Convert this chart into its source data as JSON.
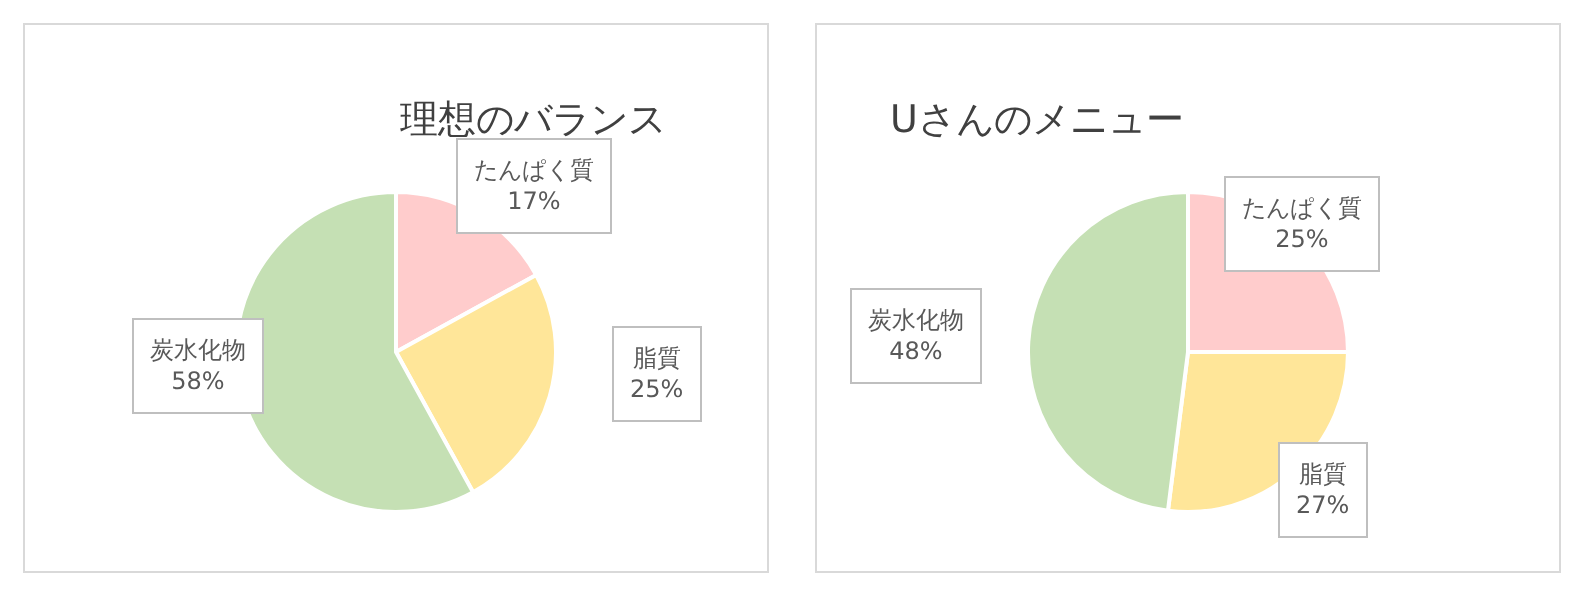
{
  "chart_data": [
    {
      "type": "pie",
      "title": "理想のバランス",
      "categories": [
        "たんぱく質",
        "脂質",
        "炭水化物"
      ],
      "values": [
        17,
        25,
        58
      ],
      "colors": [
        "#ffcccc",
        "#ffe699",
        "#c5e0b4"
      ],
      "value_labels": [
        "17%",
        "25%",
        "58%"
      ]
    },
    {
      "type": "pie",
      "title": "Uさんのメニュー",
      "categories": [
        "たんぱく質",
        "脂質",
        "炭水化物"
      ],
      "values": [
        25,
        27,
        48
      ],
      "colors": [
        "#ffcccc",
        "#ffe699",
        "#c5e0b4"
      ],
      "value_labels": [
        "25%",
        "27%",
        "48%"
      ]
    }
  ]
}
